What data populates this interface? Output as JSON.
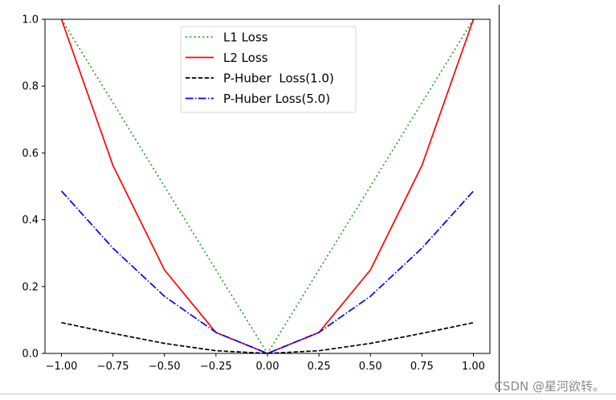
{
  "chart_data": {
    "type": "line",
    "title": "",
    "xlabel": "",
    "ylabel": "",
    "xlim": [
      -1.08,
      1.08
    ],
    "ylim": [
      0.0,
      1.0
    ],
    "grid": false,
    "legend_position": "upper center",
    "x_ticks": [
      "−1.00",
      "−0.75",
      "−0.50",
      "−0.25",
      "0.00",
      "0.25",
      "0.50",
      "0.75",
      "1.00"
    ],
    "x_tick_values": [
      -1.0,
      -0.75,
      -0.5,
      -0.25,
      0.0,
      0.25,
      0.5,
      0.75,
      1.0
    ],
    "y_ticks": [
      "0.0",
      "0.2",
      "0.4",
      "0.6",
      "0.8",
      "1.0"
    ],
    "y_tick_values": [
      0.0,
      0.2,
      0.4,
      0.6,
      0.8,
      1.0
    ],
    "x": [
      -1.0,
      -0.75,
      -0.5,
      -0.25,
      0.0,
      0.25,
      0.5,
      0.75,
      1.0
    ],
    "series": [
      {
        "name": "L1 Loss",
        "color": "#2ca02c",
        "dash": "dotted",
        "values": [
          1.0,
          0.75,
          0.5,
          0.25,
          0.0,
          0.25,
          0.5,
          0.75,
          1.0
        ]
      },
      {
        "name": "L2 Loss",
        "color": "#ff0000",
        "dash": "solid",
        "values": [
          1.0,
          0.5625,
          0.25,
          0.0625,
          0.0,
          0.0625,
          0.25,
          0.5625,
          1.0
        ]
      },
      {
        "name": "P-Huber  Loss(1.0)",
        "color": "#000000",
        "dash": "dashed",
        "values": [
          0.092,
          0.06,
          0.03,
          0.008,
          0.0,
          0.008,
          0.03,
          0.06,
          0.092
        ]
      },
      {
        "name": "P-Huber Loss(5.0)",
        "color": "#0000ff",
        "dash": "dashdot",
        "values": [
          0.486,
          0.315,
          0.171,
          0.063,
          0.0,
          0.063,
          0.171,
          0.315,
          0.486
        ]
      }
    ]
  },
  "watermark": "CSDN @星河欲转。"
}
